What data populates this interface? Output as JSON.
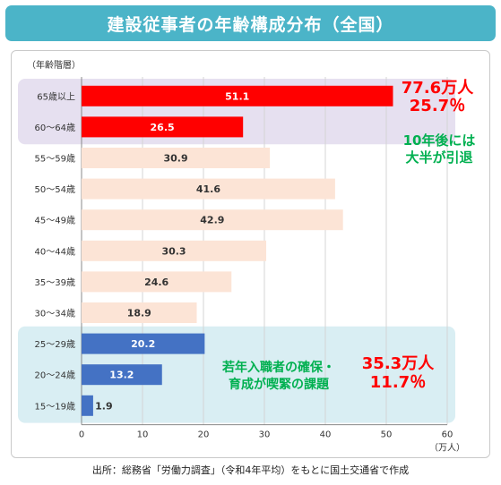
{
  "header": {
    "title": "建設従事者の年齢構成分布（全国）"
  },
  "chart_data": {
    "type": "bar",
    "orientation": "horizontal",
    "ylabel": "（年齢階層）",
    "xlabel": "（万人）",
    "xlim": [
      0,
      60
    ],
    "xticks": [
      0,
      10,
      20,
      30,
      40,
      50,
      60
    ],
    "grid": true,
    "categories": [
      "65歳以上",
      "60～64歳",
      "55～59歳",
      "50～54歳",
      "45～49歳",
      "40～44歳",
      "35～39歳",
      "30～34歳",
      "25～29歳",
      "20～24歳",
      "15～19歳"
    ],
    "values": [
      51.1,
      26.5,
      30.9,
      41.6,
      42.9,
      30.3,
      24.6,
      18.9,
      20.2,
      13.2,
      1.9
    ],
    "bar_colors": [
      "#ff0000",
      "#ff0000",
      "#fce4d6",
      "#fce4d6",
      "#fce4d6",
      "#fce4d6",
      "#fce4d6",
      "#fce4d6",
      "#4472c4",
      "#4472c4",
      "#4472c4"
    ],
    "label_colors": [
      "#ffffff",
      "#ffffff",
      "#333333",
      "#333333",
      "#333333",
      "#333333",
      "#333333",
      "#333333",
      "#ffffff",
      "#ffffff",
      "#333333"
    ],
    "highlight_groups": [
      {
        "from": 0,
        "to": 1,
        "color": "#e6e0f0"
      },
      {
        "from": 8,
        "to": 10,
        "color": "#d9eef3"
      }
    ],
    "annotations": [
      {
        "lines": [
          "77.6万人",
          "25.7％"
        ],
        "color": "#ff0000"
      },
      {
        "lines": [
          "10年後には",
          "大半が引退"
        ],
        "color": "#00b050"
      },
      {
        "lines": [
          "若年入職者の確保・",
          "育成が喫緊の課題"
        ],
        "color": "#00b050"
      },
      {
        "lines": [
          "35.3万人",
          "11.7％"
        ],
        "color": "#ff0000"
      }
    ]
  },
  "footer": {
    "source": "出所：総務省「労働力調査」（令和4年平均）をもとに国土交通省で作成"
  }
}
